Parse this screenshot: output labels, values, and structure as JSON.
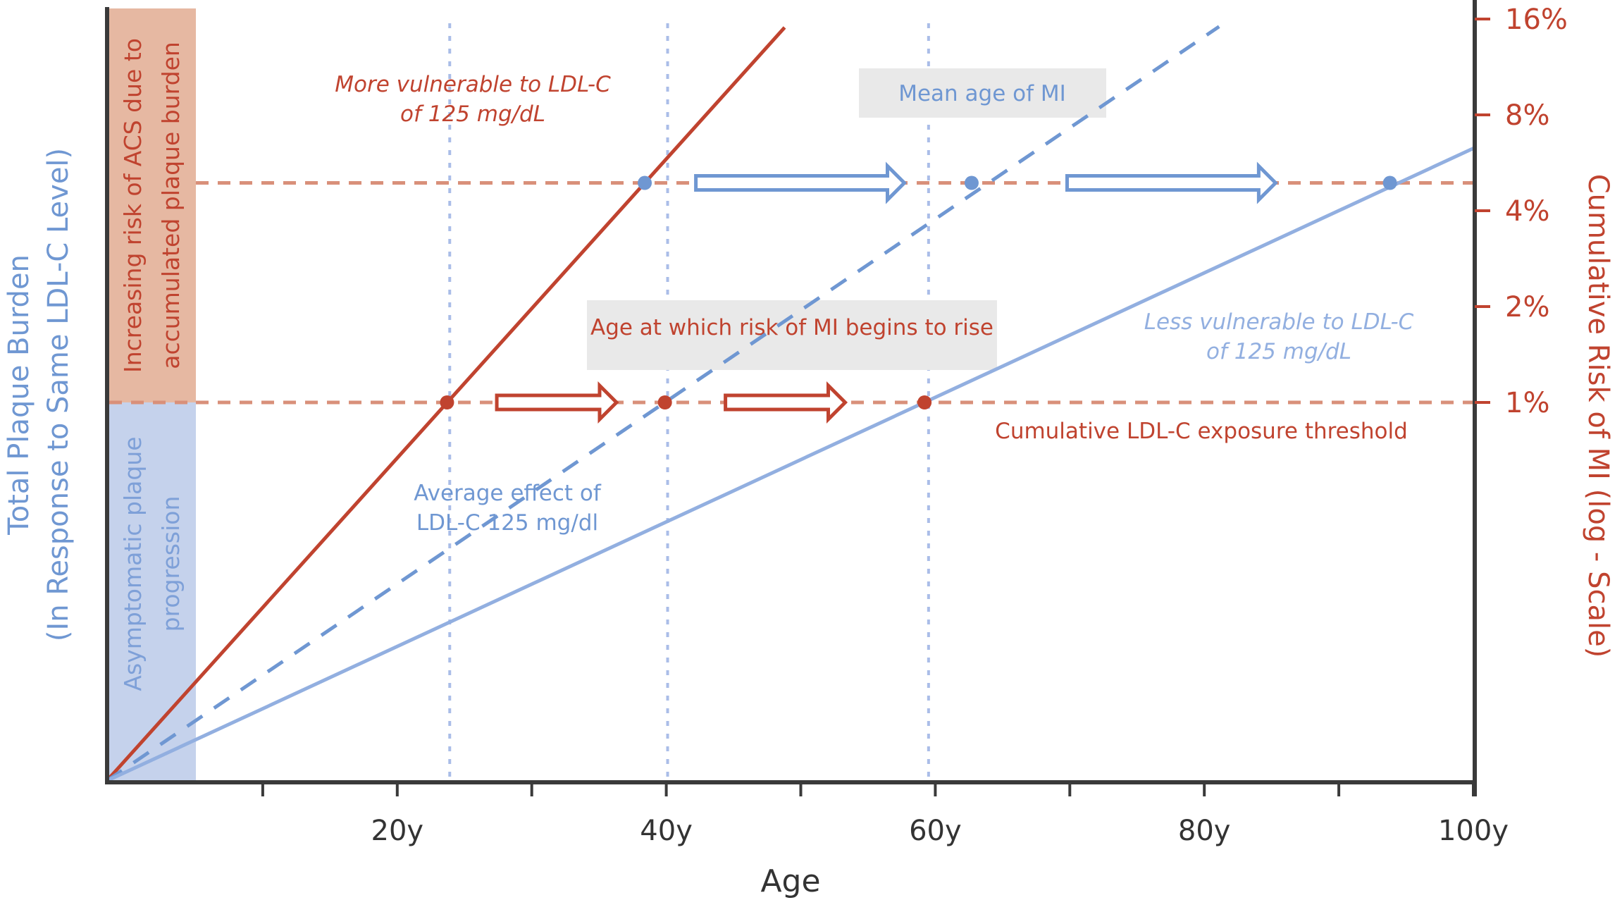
{
  "chart_data": {
    "type": "line",
    "title": "",
    "xlabel": "Age",
    "ylabel_left": "Total Plaque Burden",
    "ylabel_left_sub": "(In Response to Same LDL-C Level)",
    "ylabel_right": "Cumulative Risk of MI (log - Scale)",
    "x_ticks": [
      10,
      20,
      30,
      40,
      50,
      60,
      70,
      80,
      90,
      100
    ],
    "x_tick_labels": [
      {
        "value": 20,
        "label": "20y"
      },
      {
        "value": 40,
        "label": "40y"
      },
      {
        "value": 60,
        "label": "60y"
      },
      {
        "value": 80,
        "label": "80y"
      },
      {
        "value": 100,
        "label": "100y"
      }
    ],
    "xlim": [
      -1.6,
      100
    ],
    "right_axis": {
      "scale": "log2",
      "ticks": [
        {
          "value": 1,
          "label": "1%"
        },
        {
          "value": 2,
          "label": "2%"
        },
        {
          "value": 4,
          "label": "4%"
        },
        {
          "value": 8,
          "label": "8%"
        },
        {
          "value": 16,
          "label": "16%"
        }
      ]
    },
    "origin_age": -1.6,
    "threshold_burden": 1.0,
    "thresholds": [
      {
        "name": "threshold-1pct",
        "risk_pct": 1,
        "burden": 1.0
      },
      {
        "name": "threshold-mean-mi",
        "risk_pct": 4.9,
        "burden": 1.58
      }
    ],
    "series": [
      {
        "name": "More vulnerable to LDL-C of 125 mg/dL",
        "style": "solid",
        "color": "#c0432f",
        "slope": 0.0395,
        "x": [
          -1.6,
          48.8
        ]
      },
      {
        "name": "Average effect of LDL-C 125 mg/dl",
        "style": "dashed",
        "color": "#6f97d2",
        "slope": 0.0241,
        "x": [
          -1.6,
          81.1
        ]
      },
      {
        "name": "Less vulnerable to LDL-C of 125 mg/dL",
        "style": "solid",
        "color": "#92afe0",
        "slope": 0.01645,
        "x": [
          -1.6,
          100
        ]
      }
    ],
    "points": [
      {
        "name": "red-dot-more-vulnerable",
        "age": 23.7,
        "burden": 1.0,
        "color": "#c0432f"
      },
      {
        "name": "red-dot-average",
        "age": 39.9,
        "burden": 1.0,
        "color": "#c0432f"
      },
      {
        "name": "red-dot-less-vulnerable",
        "age": 59.2,
        "burden": 1.0,
        "color": "#c0432f"
      },
      {
        "name": "blue-dot-more-vulnerable",
        "age": 38.4,
        "burden": 1.58,
        "color": "#6f97d2"
      },
      {
        "name": "blue-dot-average",
        "age": 62.7,
        "burden": 1.58,
        "color": "#6f97d2"
      },
      {
        "name": "blue-dot-less-vulnerable",
        "age": 93.8,
        "burden": 1.58,
        "color": "#6f97d2"
      }
    ],
    "vertical_guides": [
      23.9,
      40.1,
      59.5
    ],
    "arrows": [
      {
        "name": "red-arrow-1",
        "from": 27.4,
        "to": 36.3,
        "burden": 1.0,
        "color": "#c0432f"
      },
      {
        "name": "red-arrow-2",
        "from": 44.4,
        "to": 53.3,
        "burden": 1.0,
        "color": "#c0432f"
      },
      {
        "name": "blue-arrow-1",
        "from": 42.2,
        "to": 57.7,
        "burden": 1.58,
        "color": "#6f97d2"
      },
      {
        "name": "blue-arrow-2",
        "from": 69.8,
        "to": 85.3,
        "burden": 1.58,
        "color": "#6f97d2"
      }
    ],
    "annotations": {
      "more_vulnerable_1": "More vulnerable to LDL-C",
      "more_vulnerable_2": "of 125 mg/dL",
      "less_vulnerable_1": "Less vulnerable to LDL-C",
      "less_vulnerable_2": "of 125 mg/dL",
      "average_1": "Average effect of",
      "average_2": "LDL-C 125 mg/dl",
      "mean_age_mi": "Mean age of MI",
      "age_risk_rises": "Age at which risk of MI begins to rise",
      "exposure_threshold": "Cumulative LDL-C exposure threshold",
      "band_upper_1": "Increasing risk of ACS due to",
      "band_upper_2": "accumulated plaque burden",
      "band_lower_1": "Asymptomatic plaque",
      "band_lower_2": "progression"
    },
    "colors": {
      "red": "#c0432f",
      "blue": "#6f97d2",
      "light_blue": "#92afe0",
      "ref_dash": "#d9907a",
      "guide": "#aabde8",
      "band_upper": "#e6b8a2",
      "band_lower": "#c5d2ec",
      "label_box": "#e9e9e9",
      "axis": "#3a3a3a"
    }
  }
}
